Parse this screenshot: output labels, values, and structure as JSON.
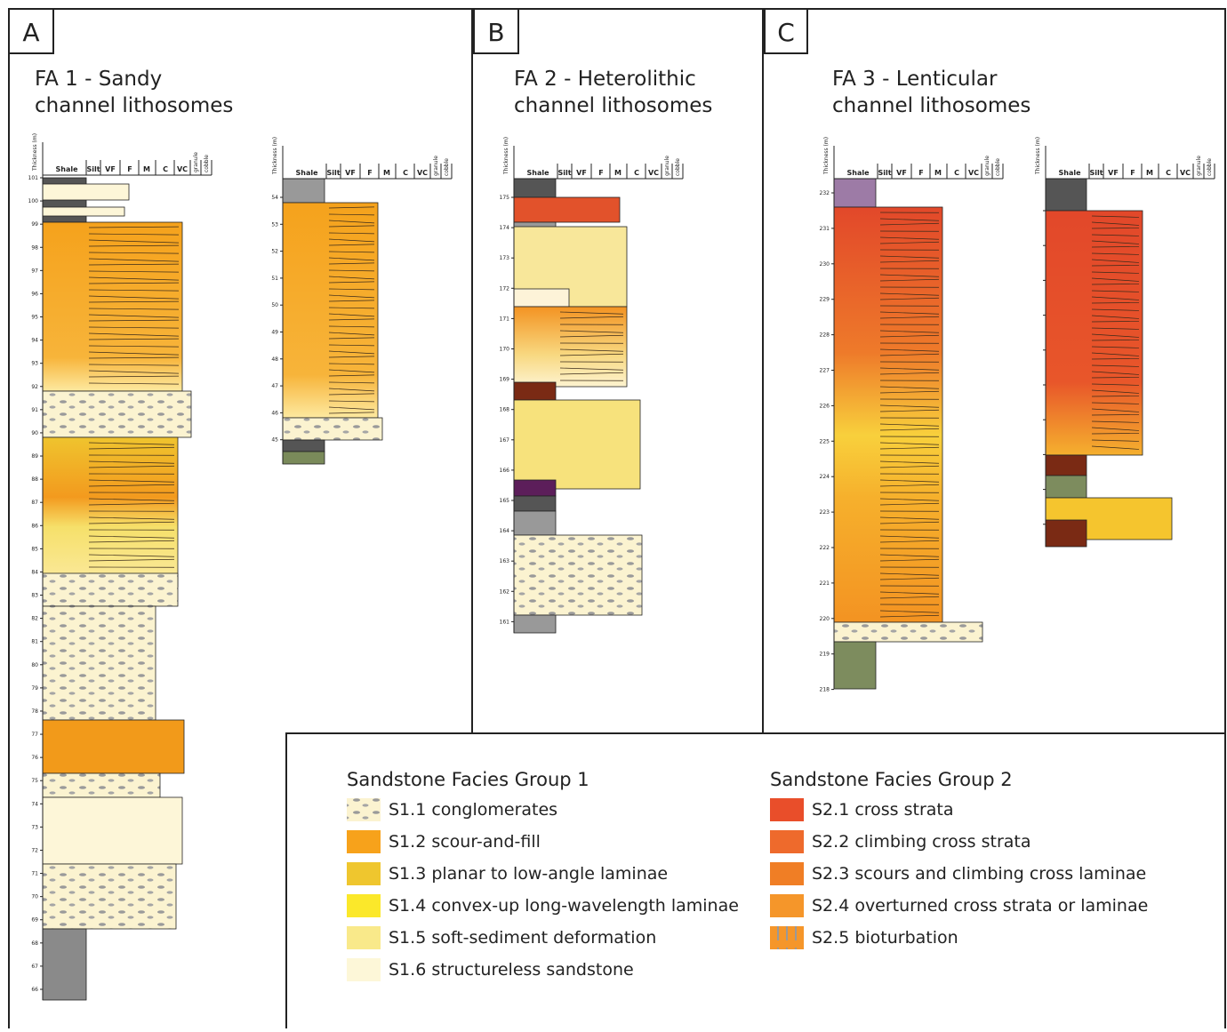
{
  "panels": [
    {
      "letter": "A",
      "title_lines": [
        "FA 1 - Sandy",
        "channel lithosomes"
      ]
    },
    {
      "letter": "B",
      "title_lines": [
        "FA 2 - Heterolithic",
        "channel lithosomes"
      ]
    },
    {
      "letter": "C",
      "title_lines": [
        "FA 3 - Lenticular",
        "channel lithosomes"
      ]
    }
  ],
  "log_header": {
    "thickness_label": "Thickness (m)",
    "columns": [
      "Shale",
      "Silt",
      "VF",
      "F",
      "M",
      "C",
      "VC",
      "granule",
      "cobble"
    ]
  },
  "logs": [
    {
      "ticks": [
        101,
        100,
        99,
        98,
        97,
        96,
        95,
        94,
        93,
        92,
        91,
        90,
        89,
        88,
        87,
        86,
        85,
        84,
        83,
        82,
        81,
        80,
        79,
        78,
        77,
        76,
        75,
        74,
        73,
        72,
        71,
        70,
        69,
        68,
        67,
        66
      ]
    },
    {
      "ticks": [
        54,
        53,
        52,
        51,
        50,
        49,
        48,
        47,
        46,
        45
      ]
    },
    {
      "ticks": [
        175,
        174,
        173,
        172,
        171,
        170,
        169,
        168,
        167,
        166,
        165,
        164,
        163,
        162,
        161
      ]
    },
    {
      "ticks": [
        232,
        231,
        230,
        229,
        228,
        227,
        226,
        225,
        224,
        223,
        222,
        221,
        220,
        219,
        218
      ]
    }
  ],
  "legend": {
    "groups": [
      {
        "title": "Sandstone Facies Group 1",
        "items": [
          "S1.1 conglomerates",
          "S1.2 scour-and-fill",
          "S1.3 planar to low-angle laminae",
          "S1.4 convex-up long-wavelength laminae",
          "S1.5 soft-sediment deformation",
          "S1.6 structureless sandstone"
        ]
      },
      {
        "title": "Sandstone Facies Group 2",
        "items": [
          "S2.1 cross strata",
          "S2.2 climbing cross strata",
          "S2.3 scours and climbing cross laminae",
          "S2.4 overturned cross strata or laminae",
          "S2.5 bioturbation"
        ]
      }
    ]
  }
}
